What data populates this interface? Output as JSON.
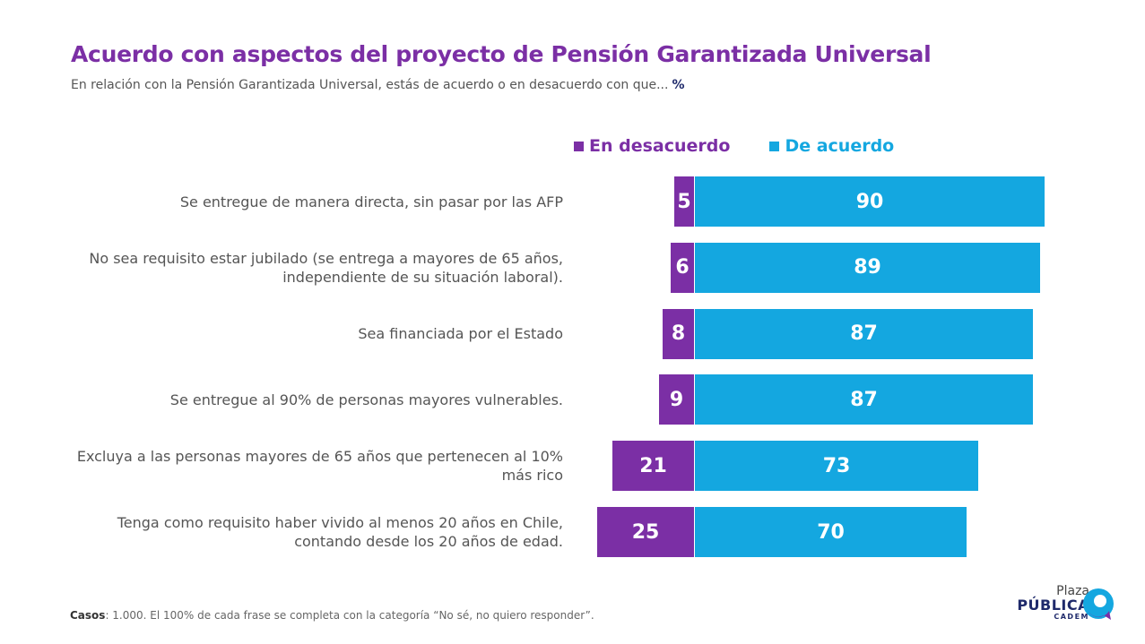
{
  "title": "Acuerdo con aspectos del proyecto de Pensión Garantizada Universal",
  "subtitle": "En relación con la Pensión Garantizada Universal, estás de acuerdo o en desacuerdo con que...",
  "subtitle_unit": "%",
  "colors": {
    "disagree": "#7b2fa5",
    "agree": "#14a7e0",
    "title": "#7b2fa5"
  },
  "chart_data": {
    "type": "bar",
    "orientation": "horizontal",
    "stacked": "diverging",
    "legend_position": "top",
    "categories": [
      "Se entregue de manera directa, sin pasar por las AFP",
      "No sea requisito estar jubilado (se entrega a mayores de 65 años, independiente de su situación laboral).",
      "Sea financiada por el Estado",
      "Se entregue al 90% de personas mayores vulnerables.",
      "Excluya a las personas mayores de 65 años que pertenecen al 10% más rico",
      "Tenga como requisito haber vivido al menos 20 años en Chile, contando desde los 20 años de edad."
    ],
    "series": [
      {
        "name": "En desacuerdo",
        "values": [
          5,
          6,
          8,
          9,
          21,
          25
        ]
      },
      {
        "name": "De acuerdo",
        "values": [
          90,
          89,
          87,
          87,
          73,
          70
        ]
      }
    ]
  },
  "footer": {
    "label": "Casos",
    "text": ": 1.000. El 100% de cada frase se completa con la categoría “No sé, no quiero responder”."
  },
  "logo": {
    "line1": "Plaza",
    "line2": "PÚBLICA",
    "line3": "CADEM"
  }
}
